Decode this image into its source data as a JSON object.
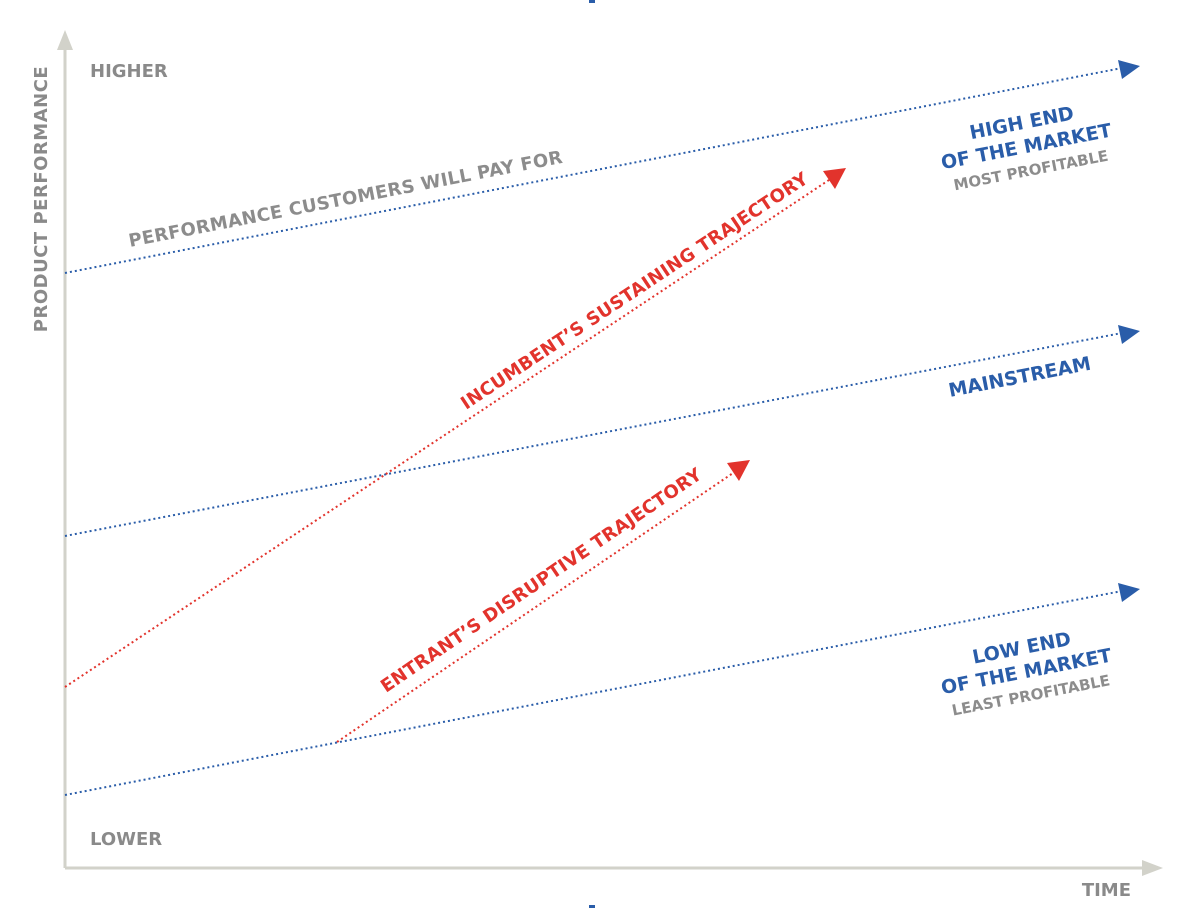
{
  "colors": {
    "axis": "#d2d2ca",
    "axis_label": "#8a8a8a",
    "blue": "#2a5da9",
    "red": "#e2332c",
    "gray": "#8c8c8c"
  },
  "axes": {
    "y_label": "PRODUCT PERFORMANCE",
    "x_label": "TIME",
    "y_high": "HIGHER",
    "y_low": "LOWER"
  },
  "lines": {
    "performance_pay_for": "PERFORMANCE CUSTOMERS WILL PAY FOR",
    "incumbent": "INCUMBENT’S SUSTAINING TRAJECTORY",
    "entrant": "ENTRANT’S DISRUPTIVE TRAJECTORY"
  },
  "markets": {
    "high_end_line1": "HIGH END",
    "high_end_line2": "OF THE MARKET",
    "high_end_sub": "MOST PROFITABLE",
    "mainstream": "MAINSTREAM",
    "low_end_line1": "LOW END",
    "low_end_line2": "OF THE MARKET",
    "low_end_sub": "LEAST PROFITABLE"
  }
}
